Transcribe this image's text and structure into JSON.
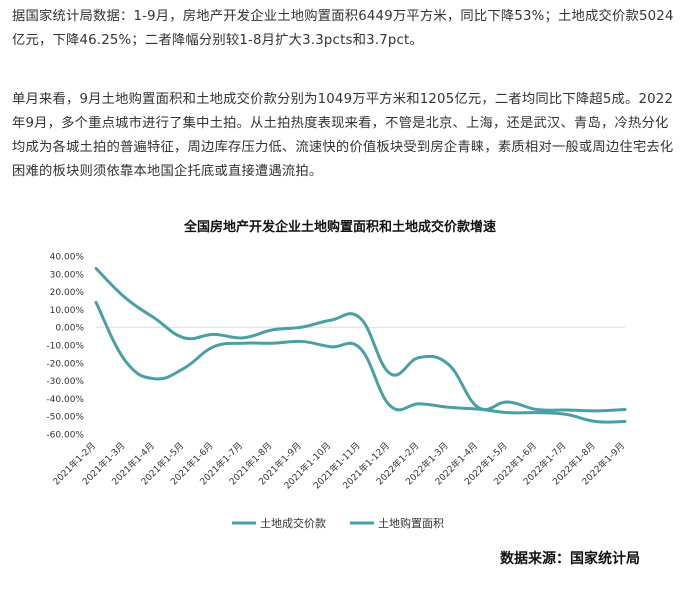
{
  "article": {
    "paragraph1": "据国家统计局数据：1-9月，房地产开发企业土地购置面积6449万平方米，同比下降53%；土地成交价款5024亿元，下降46.25%；二者降幅分别较1-8月扩大3.3pcts和3.7pct。",
    "paragraph2": "单月来看，9月土地购置面积和土地成交价款分别为1049万平方米和1205亿元，二者均同比下降超5成。2022年9月，多个重点城市进行了集中土拍。从土拍热度表现来看，不管是北京、上海，还是武汉、青岛，冷热分化均成为各城土拍的普遍特征，周边库存压力低、流速快的价值板块受到房企青睐，素质相对一般或周边住宅去化困难的板块则须依靠本地国企托底或直接遭遇流拍。"
  },
  "chart_data": {
    "type": "line",
    "title": "全国房地产开发企业土地购置面积和土地成交价款增速",
    "categories": [
      "2021年1-2月",
      "2021年1-3月",
      "2021年1-4月",
      "2021年1-5月",
      "2021年1-6月",
      "2021年1-7月",
      "2021年1-8月",
      "2021年1-9月",
      "2021年1-10月",
      "2021年1-11月",
      "2021年1-12月",
      "2022年1-2月",
      "2022年1-3月",
      "2022年1-4月",
      "2022年1-5月",
      "2022年1-6月",
      "2022年1-7月",
      "2022年1-8月",
      "2022年1-9月"
    ],
    "ylim": [
      -60,
      40
    ],
    "yticks": [
      "40.00%",
      "30.00%",
      "20.00%",
      "10.00%",
      "0.00%",
      "-10.00%",
      "-20.00%",
      "-30.00%",
      "-40.00%",
      "-50.00%",
      "-60.00%"
    ],
    "ytick_values": [
      40,
      30,
      20,
      10,
      0,
      -10,
      -20,
      -30,
      -40,
      -50,
      -60
    ],
    "legend_position": "bottom",
    "series": [
      {
        "name": "土地成交价款",
        "color": "#4a9fa3",
        "values": [
          33.0,
          16.5,
          5.0,
          -6.0,
          -4.0,
          -6.0,
          -1.5,
          0.0,
          4.0,
          5.0,
          -26.0,
          -17.0,
          -21.0,
          -45.0,
          -42.0,
          -46.25,
          -46.5,
          -47.0,
          -46.25
        ]
      },
      {
        "name": "土地购置面积",
        "color": "#4a9fa3",
        "values": [
          14.0,
          -19.0,
          -29.0,
          -23.0,
          -11.0,
          -9.0,
          -9.0,
          -8.0,
          -11.0,
          -12.0,
          -44.0,
          -43.0,
          -45.0,
          -46.0,
          -48.0,
          -48.0,
          -49.0,
          -53.0,
          -53.0
        ]
      }
    ]
  },
  "source": "数据来源：国家统计局"
}
